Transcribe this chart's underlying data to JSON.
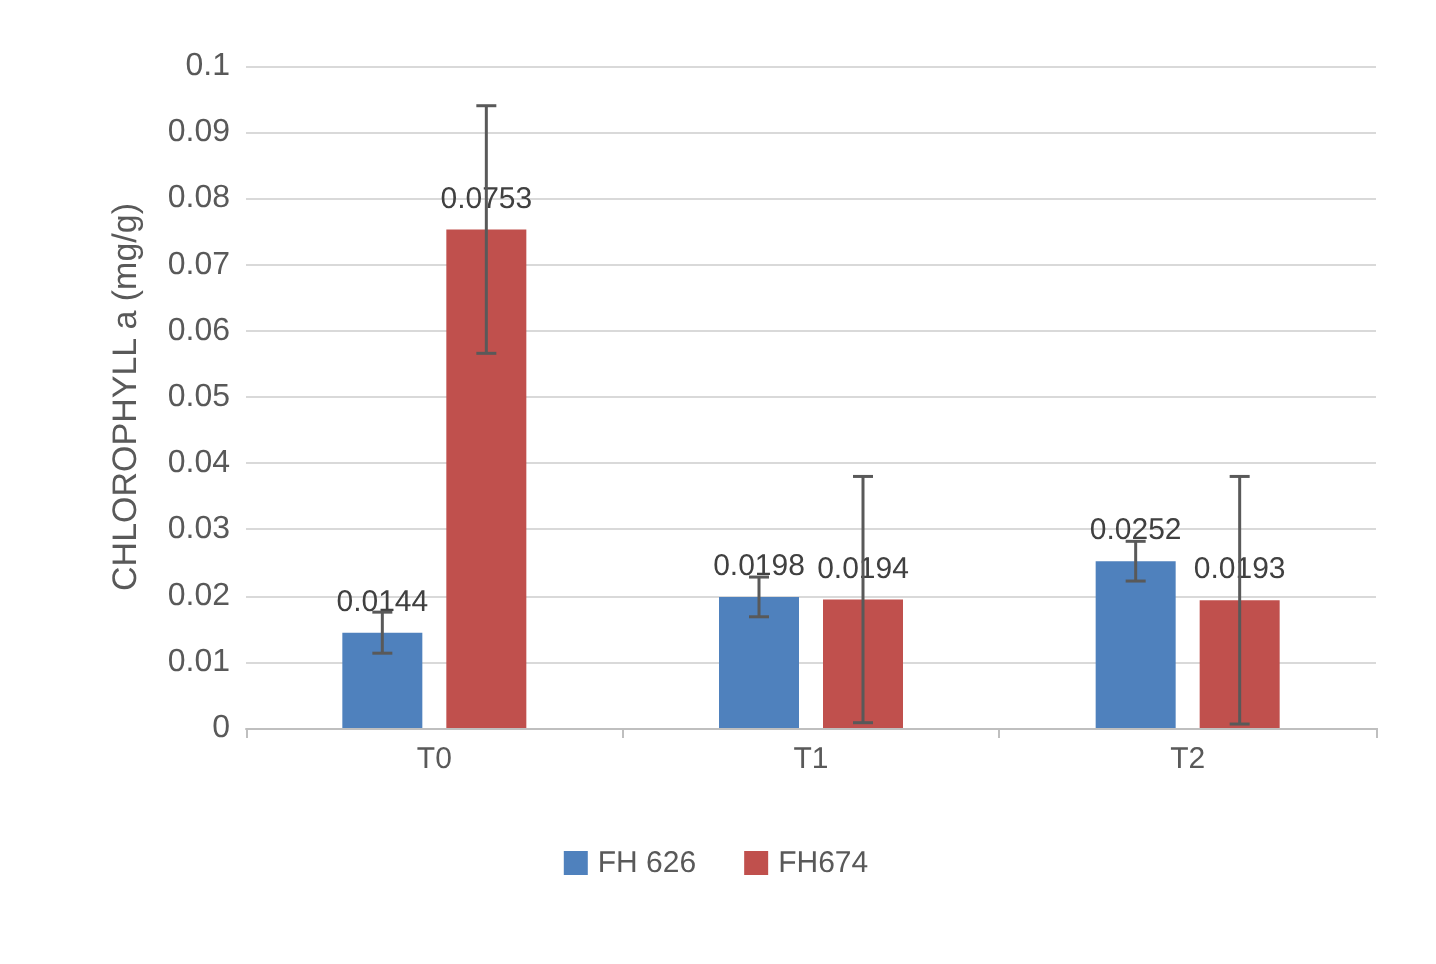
{
  "chart_data": {
    "type": "bar",
    "ylabel": "CHLOROPHYLL a (mg/g)",
    "categories": [
      "T0",
      "T1",
      "T2"
    ],
    "series": [
      {
        "name": "FH 626",
        "color": "#4f81bd",
        "values": [
          0.0144,
          0.0198,
          0.0252
        ],
        "errors": [
          0.0031,
          0.003,
          0.003
        ]
      },
      {
        "name": "FH674",
        "color": "#c0504d",
        "values": [
          0.0753,
          0.0194,
          0.0193
        ],
        "errors": [
          0.0187,
          0.0186,
          0.0187
        ]
      }
    ],
    "ylim": [
      0,
      0.1
    ],
    "yticks": [
      0,
      0.01,
      0.02,
      0.03,
      0.04,
      0.05,
      0.06,
      0.07,
      0.08,
      0.09,
      0.1
    ],
    "grid": "y",
    "legend": "bottom",
    "data_labels": true
  }
}
